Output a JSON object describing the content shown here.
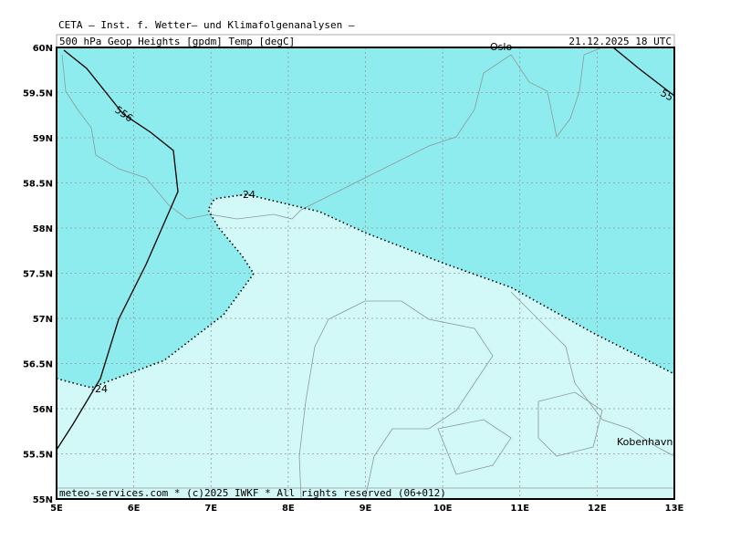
{
  "header": {
    "institute": "CETA — Inst. f. Wetter— und Klimafolgenanalysen —",
    "field": "500_hPa_Geop_Heights_[gpdm]_Temp_[degC]",
    "valid_time": "21.12.2025 18 UTC"
  },
  "map": {
    "lat_labels": [
      "60N",
      "59.5N",
      "59N",
      "58.5N",
      "58N",
      "57.5N",
      "57N",
      "56.5N",
      "56N",
      "55.5N",
      "55N"
    ],
    "lon_labels": [
      "5E",
      "6E",
      "7E",
      "8E",
      "9E",
      "10E",
      "11E",
      "12E",
      "13E"
    ],
    "contour_labels": [
      "556",
      "55",
      "-24",
      "-24"
    ],
    "places": [
      "Oslo",
      "Kobenhavn"
    ]
  },
  "footer": "meteo-services.com * (c)2025 IWKF * All rights reserved (06+012)"
}
